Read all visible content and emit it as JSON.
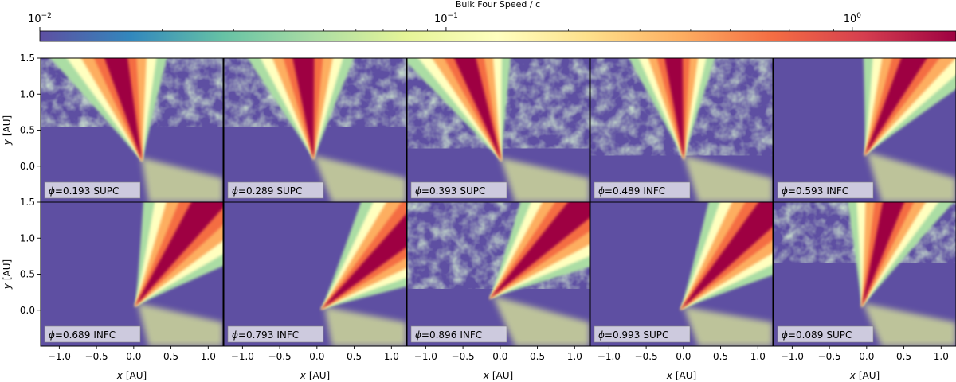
{
  "figure": {
    "colorbar": {
      "label": "Bulk Four Speed / c",
      "scale": "log",
      "range": [
        0.01,
        1.8
      ],
      "colormap": "Spectral_r",
      "ticks": [
        {
          "base": "10",
          "exp": "−2",
          "value": 0.01
        },
        {
          "base": "10",
          "exp": "−1",
          "value": 0.1
        },
        {
          "base": "10",
          "exp": "0",
          "value": 1
        }
      ],
      "colors": [
        "#5e4fa2",
        "#3288bd",
        "#66c2a5",
        "#abdda4",
        "#e6f598",
        "#ffffbf",
        "#fee08b",
        "#fdae61",
        "#f46d43",
        "#d53e4f",
        "#9e0142"
      ]
    },
    "x_axis": {
      "label_var": "x",
      "label_unit": "[AU]",
      "range": [
        -1.25,
        1.2
      ],
      "ticks": [
        "−1.0",
        "−0.5",
        "0.0",
        "0.5",
        "1.0"
      ]
    },
    "y_axis": {
      "label_var": "y",
      "label_unit": "[AU]",
      "range": [
        -0.5,
        1.5
      ],
      "ticks": [
        "1.5",
        "1.0",
        "0.5",
        "0.0"
      ]
    },
    "panels": [
      {
        "phi": "=0.193",
        "tag": "SUPC"
      },
      {
        "phi": "=0.289",
        "tag": "SUPC"
      },
      {
        "phi": "=0.393",
        "tag": "SUPC"
      },
      {
        "phi": "=0.489",
        "tag": "INFC"
      },
      {
        "phi": "=0.593",
        "tag": "INFC"
      },
      {
        "phi": "=0.689",
        "tag": "INFC"
      },
      {
        "phi": "=0.793",
        "tag": "INFC"
      },
      {
        "phi": "=0.896",
        "tag": "INFC"
      },
      {
        "phi": "=0.993",
        "tag": "SUPC"
      },
      {
        "phi": "=0.089",
        "tag": "SUPC"
      }
    ],
    "phi_symbol": "ϕ",
    "background_color": "#5e4fa2"
  }
}
